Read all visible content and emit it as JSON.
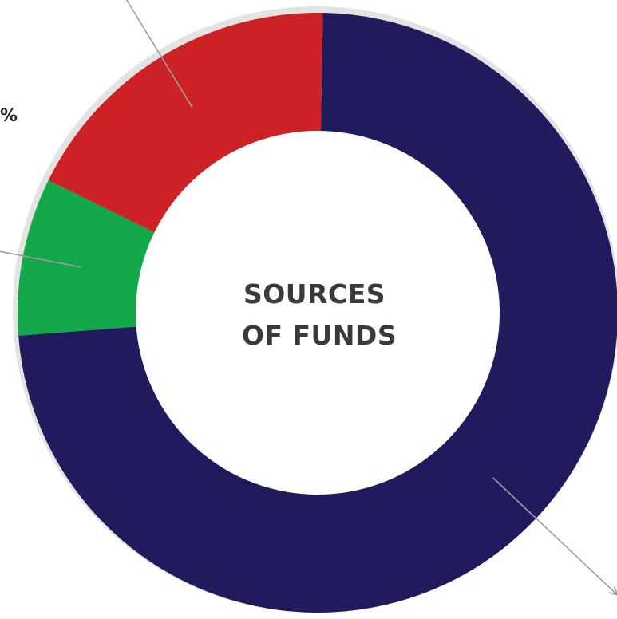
{
  "chart_data": {
    "type": "pie",
    "style": "donut",
    "title_lines": [
      "SOURCES",
      "OF FUNDS"
    ],
    "slices": [
      {
        "value": 73.5,
        "color": "#1f1b5c",
        "label_text": "%"
      },
      {
        "value": 8.5,
        "color": "#13a84a",
        "label_text": ""
      },
      {
        "value": 18.0,
        "color": "#cc2226",
        "label_text": ""
      }
    ],
    "leader_color": "#9e9e9e",
    "shadow_color": "#c8c8c8"
  }
}
